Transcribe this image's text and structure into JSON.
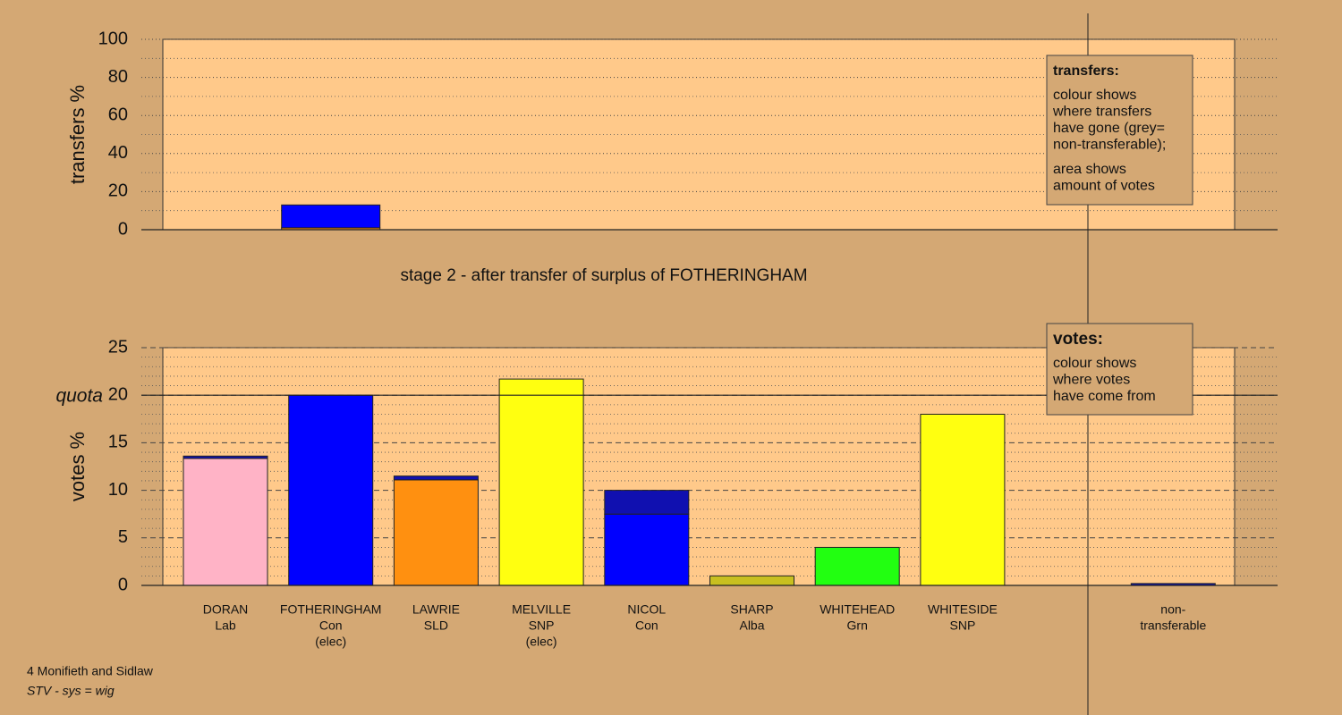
{
  "chart_data": [
    {
      "type": "bar",
      "stacked": true,
      "ylabel": "transfers %",
      "ylim": [
        0,
        100
      ],
      "yticks": [
        0,
        20,
        40,
        60,
        80,
        100
      ],
      "minor_yticks": [
        10,
        30,
        50,
        70,
        90
      ],
      "major_grid": "dotted",
      "series": [
        {
          "color": "#ff8c00",
          "values": [
            null,
            1,
            null,
            null,
            null,
            null,
            null,
            null,
            null,
            null
          ]
        },
        {
          "color": "#0000ff",
          "values": [
            null,
            12,
            null,
            null,
            null,
            null,
            null,
            null,
            null,
            null
          ]
        }
      ],
      "note": {
        "title": "transfers:",
        "paragraphs": [
          [
            "colour shows",
            "where transfers",
            "have gone (grey=",
            "non-transferable);"
          ],
          [
            "area shows",
            "amount of votes"
          ]
        ]
      }
    },
    {
      "type": "bar",
      "stacked": true,
      "title": "stage 2 - after transfer of surplus of FOTHERINGHAM",
      "ylabel": "votes %",
      "ylim": [
        0,
        25
      ],
      "yticks": [
        0,
        5,
        10,
        15,
        20,
        25
      ],
      "minor_yticks": [
        1,
        2,
        3,
        4,
        6,
        7,
        8,
        9,
        11,
        12,
        13,
        14,
        16,
        17,
        18,
        19,
        21,
        22,
        23,
        24
      ],
      "major_grid": "dashed",
      "quota": {
        "label": "quota",
        "value": 20
      },
      "categories": [
        [
          "DORAN",
          "Lab"
        ],
        [
          "FOTHERINGHAM",
          "Con",
          "(elec)"
        ],
        [
          "LAWRIE",
          "SLD"
        ],
        [
          "MELVILLE",
          "SNP",
          "(elec)"
        ],
        [
          "NICOL",
          "Con"
        ],
        [
          "SHARP",
          "Alba"
        ],
        [
          "WHITEHEAD",
          "Grn"
        ],
        [
          "WHITESIDE",
          "SNP"
        ],
        null,
        [
          "non-",
          "transferable"
        ]
      ],
      "series": [
        {
          "colors": [
            "#ffb3c6",
            "#0000ff",
            "#ff9010",
            "#ffff10",
            "#0000ff",
            "#c8c020",
            "#22ff11",
            "#ffff10",
            null,
            null
          ],
          "values": [
            13.35,
            20,
            11.1,
            21.7,
            7.5,
            1.0,
            4.0,
            18.0,
            null,
            null
          ]
        },
        {
          "color": "#1010b0",
          "values": [
            0.25,
            null,
            0.4,
            null,
            2.5,
            null,
            null,
            null,
            null,
            0.2
          ]
        }
      ],
      "note": {
        "title": "votes:",
        "paragraphs": [
          [
            "colour shows",
            "where votes",
            "have come from"
          ]
        ]
      }
    }
  ],
  "footer": [
    "4 Monifieth and Sidlaw",
    "STV - sys = wig"
  ]
}
